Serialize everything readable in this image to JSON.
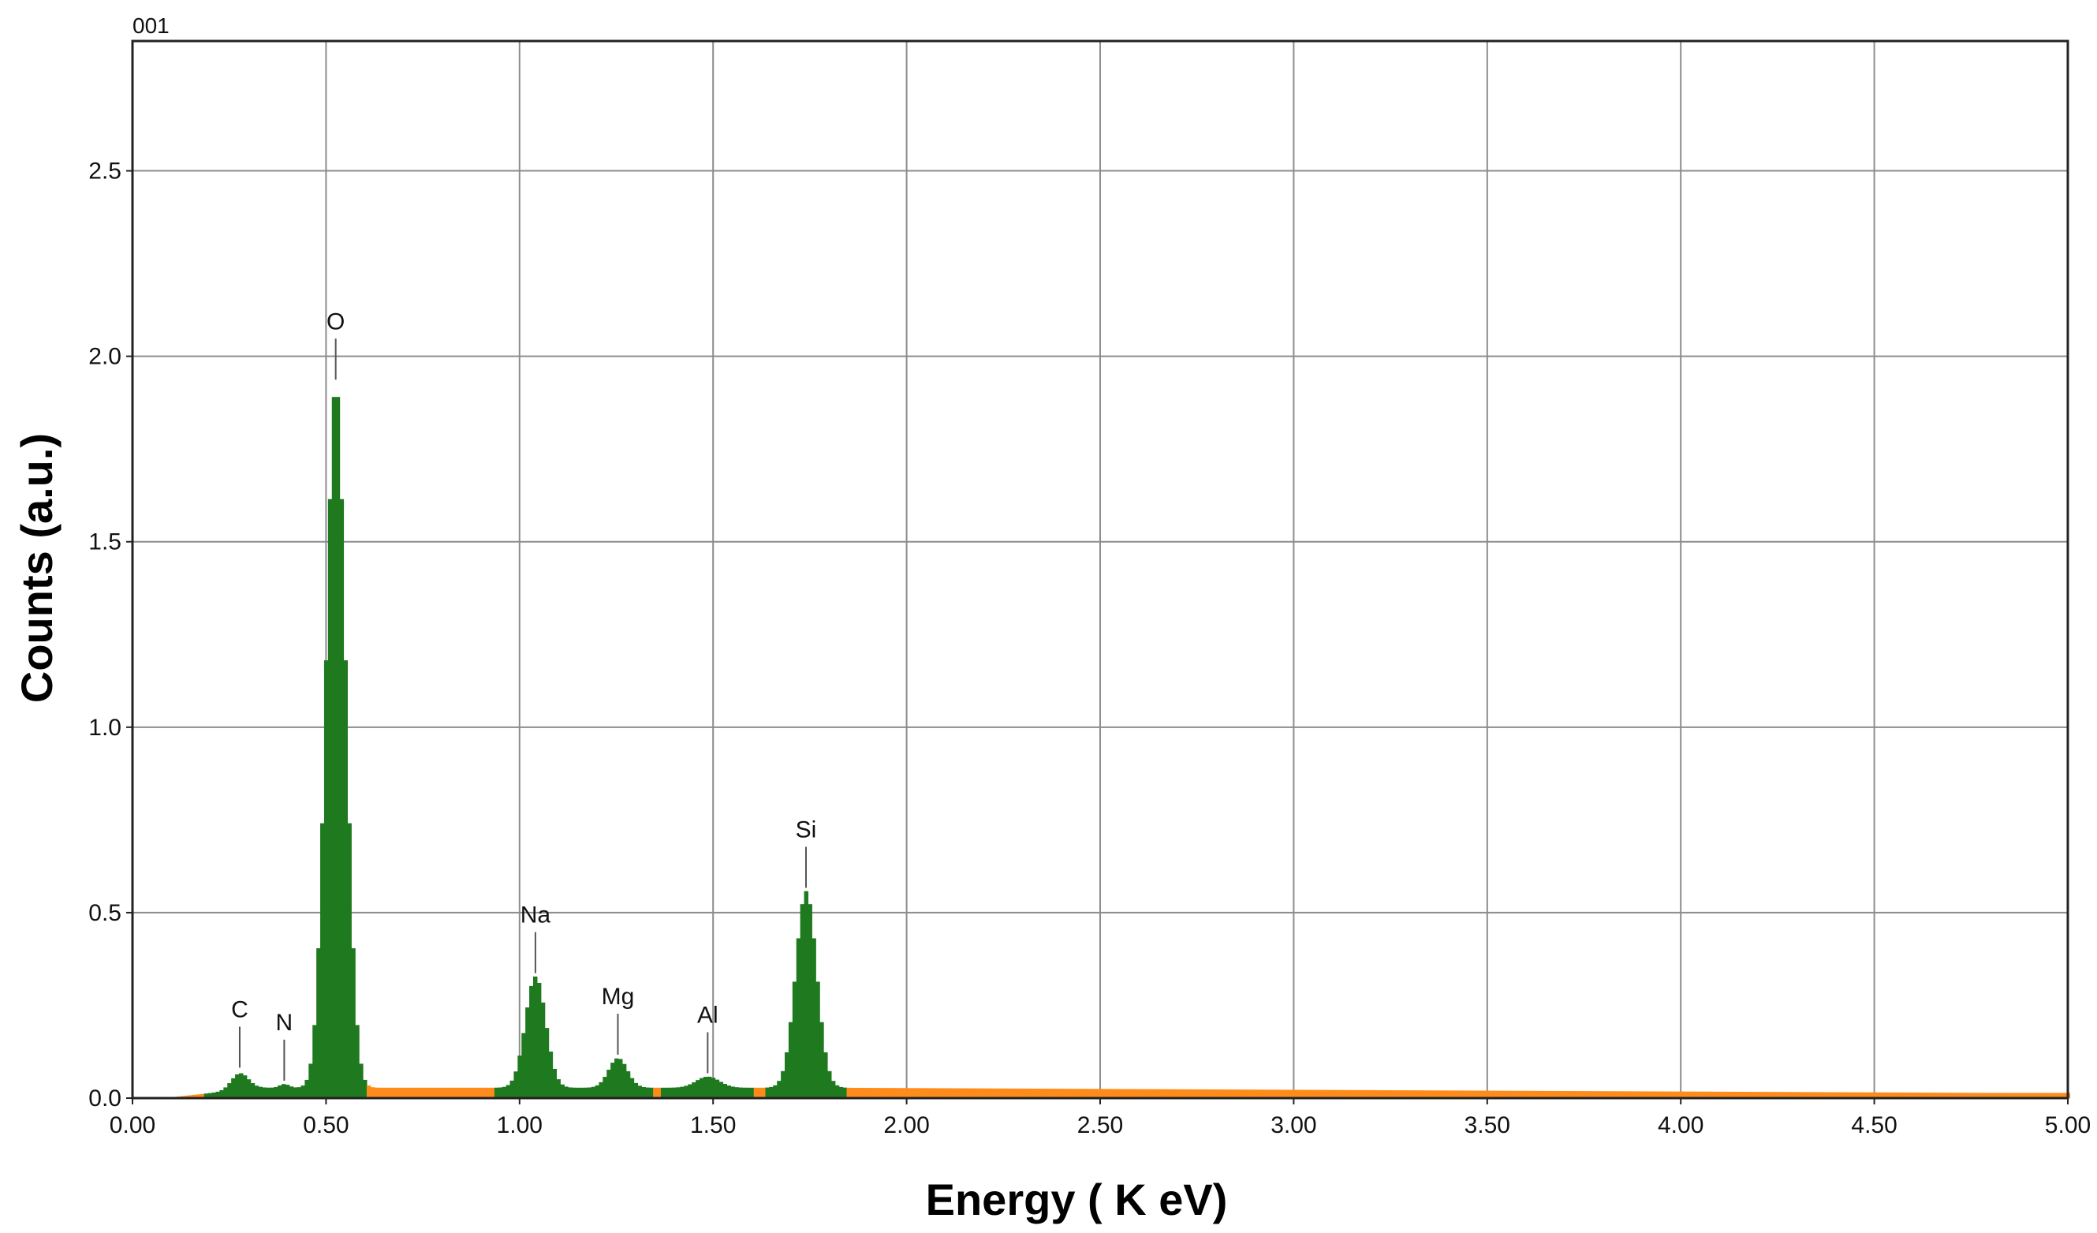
{
  "chart_data": {
    "type": "bar",
    "label": "001",
    "xlabel": "Energy ( K eV)",
    "ylabel": "Counts (a.u.)",
    "xlim": [
      0,
      5
    ],
    "ylim": [
      0,
      2.85
    ],
    "grid": true,
    "xticks": [
      "0.00",
      "0.50",
      "1.00",
      "1.50",
      "2.00",
      "2.50",
      "3.00",
      "3.50",
      "4.00",
      "4.50",
      "5.00"
    ],
    "yticks": [
      "0.0",
      "0.5",
      "1.0",
      "1.5",
      "2.0",
      "2.5"
    ],
    "colors": {
      "element": "#1f7a1f",
      "background": "#ff8c1a",
      "grid": "#8c8c8c"
    },
    "element_ranges": [
      [
        0.19,
        0.61
      ],
      [
        0.94,
        1.35
      ],
      [
        1.37,
        1.61
      ],
      [
        1.64,
        1.85
      ]
    ],
    "peaks": [
      {
        "label": "C",
        "energy": 0.277,
        "counts": 0.065
      },
      {
        "label": "N",
        "energy": 0.392,
        "counts": 0.03
      },
      {
        "label": "O",
        "energy": 0.525,
        "counts": 1.92
      },
      {
        "label": "Na",
        "energy": 1.041,
        "counts": 0.32
      },
      {
        "label": "Mg",
        "energy": 1.254,
        "counts": 0.1
      },
      {
        "label": "Al",
        "energy": 1.486,
        "counts": 0.05
      },
      {
        "label": "Si",
        "energy": 1.74,
        "counts": 0.55
      }
    ]
  }
}
